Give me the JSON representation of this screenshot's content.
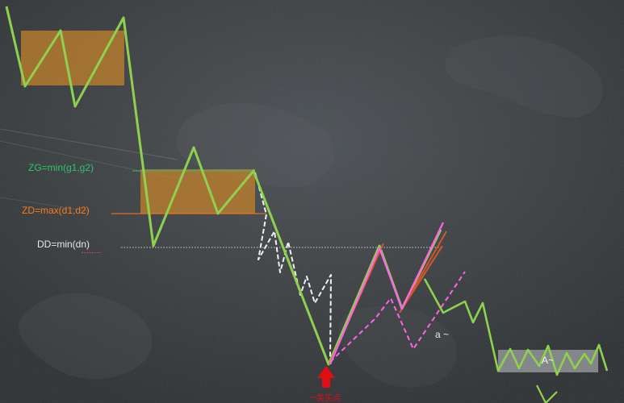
{
  "labels": {
    "zg": "ZG=min(g1,g2)",
    "zd": "ZD=max(d1,d2)",
    "dd": "DD=min(dn)",
    "buy_point": "一类买点",
    "small_a": "a ~",
    "big_a": "A~"
  },
  "colors": {
    "background": "#3a3e41",
    "main_stroke": "#8fd14f",
    "pivot_box": "#c8842a",
    "zg_label": "#2fc36b",
    "zd_label": "#ff7a1a",
    "dd_label": "#e8e8e8",
    "white_dashed": "#f1f1f1",
    "magenta": "#ff63e8",
    "orange_lines": "#d6562b",
    "buy_arrow": "#e10d12",
    "grey_box": "#9da0a3"
  }
}
